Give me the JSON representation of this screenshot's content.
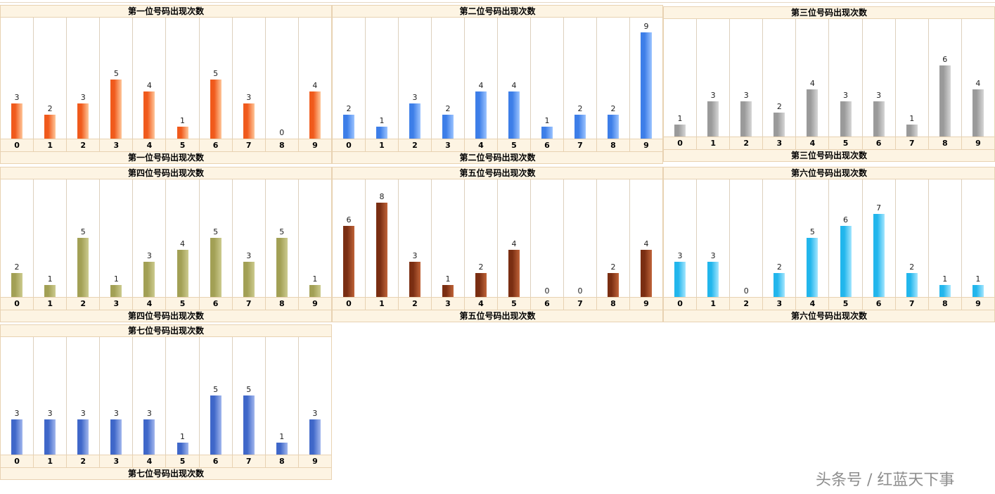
{
  "watermark": "头条号 / 红蓝天下事",
  "chart_data": [
    {
      "type": "bar",
      "title": "第一位号码出现次数",
      "footer": "第一位号码出现次数",
      "categories": [
        "0",
        "1",
        "2",
        "3",
        "4",
        "5",
        "6",
        "7",
        "8",
        "9"
      ],
      "values": [
        3,
        2,
        3,
        5,
        4,
        1,
        5,
        3,
        0,
        4
      ],
      "color_dark": "#f05a1c",
      "color_light": "#ffc79a"
    },
    {
      "type": "bar",
      "title": "第二位号码出现次数",
      "footer": "第二位号码出现次数",
      "categories": [
        "0",
        "1",
        "2",
        "3",
        "4",
        "5",
        "6",
        "7",
        "8",
        "9"
      ],
      "values": [
        2,
        1,
        3,
        2,
        4,
        4,
        1,
        2,
        2,
        9
      ],
      "color_dark": "#3d7ee8",
      "color_light": "#9cc4ff"
    },
    {
      "type": "bar",
      "title": "第三位号码出现次数",
      "footer": "第三位号码出现次数",
      "categories": [
        "0",
        "1",
        "2",
        "3",
        "4",
        "5",
        "6",
        "7",
        "8",
        "9"
      ],
      "values": [
        1,
        3,
        3,
        2,
        4,
        3,
        3,
        1,
        6,
        4
      ],
      "color_dark": "#9a9a9a",
      "color_light": "#d6d6d6"
    },
    {
      "type": "bar",
      "title": "第四位号码出现次数",
      "footer": "第四位号码出现次数",
      "categories": [
        "0",
        "1",
        "2",
        "3",
        "4",
        "5",
        "6",
        "7",
        "8",
        "9"
      ],
      "values": [
        2,
        1,
        5,
        1,
        3,
        4,
        5,
        3,
        5,
        1
      ],
      "color_dark": "#a2a055",
      "color_light": "#cccb8f"
    },
    {
      "type": "bar",
      "title": "第五位号码出现次数",
      "footer": "第五位号码出现次数",
      "categories": [
        "0",
        "1",
        "2",
        "3",
        "4",
        "5",
        "6",
        "7",
        "8",
        "9"
      ],
      "values": [
        6,
        8,
        3,
        1,
        2,
        4,
        0,
        0,
        2,
        4
      ],
      "color_dark": "#7a2e12",
      "color_light": "#c0643a"
    },
    {
      "type": "bar",
      "title": "第六位号码出现次数",
      "footer": "第六位号码出现次数",
      "categories": [
        "0",
        "1",
        "2",
        "3",
        "4",
        "5",
        "6",
        "7",
        "8",
        "9"
      ],
      "values": [
        3,
        3,
        0,
        2,
        5,
        6,
        7,
        2,
        1,
        1
      ],
      "color_dark": "#22b6ec",
      "color_light": "#a4e6ff"
    },
    {
      "type": "bar",
      "title": "第七位号码出现次数",
      "footer": "第七位号码出现次数",
      "categories": [
        "0",
        "1",
        "2",
        "3",
        "4",
        "5",
        "6",
        "7",
        "8",
        "9"
      ],
      "values": [
        3,
        3,
        3,
        3,
        3,
        1,
        5,
        5,
        1,
        3
      ],
      "color_dark": "#3f67c9",
      "color_light": "#a3b8ee"
    }
  ]
}
